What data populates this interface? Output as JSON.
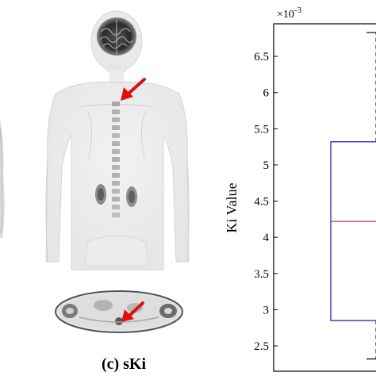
{
  "caption": "(c) sKi",
  "colors": {
    "arrow": "#e01010",
    "box_edge": "#2020c0",
    "median": "#d03030",
    "axis": "#000000"
  },
  "chart_data": {
    "type": "box",
    "ylabel": "Ki Value",
    "y_exponent_label": "×10",
    "y_exponent_power": "-3",
    "ylim": [
      2.15,
      6.95
    ],
    "yticks": [
      "2.5",
      "3",
      "3.5",
      "4",
      "4.5",
      "5",
      "5.5",
      "6",
      "6.5"
    ],
    "ytick_values": [
      2.5,
      3,
      3.5,
      4,
      4.5,
      5,
      5.5,
      6,
      6.5
    ],
    "box": {
      "q1": 2.85,
      "median": 4.22,
      "q3": 5.32,
      "whisker_low": 2.32,
      "whisker_high": 6.83
    }
  }
}
